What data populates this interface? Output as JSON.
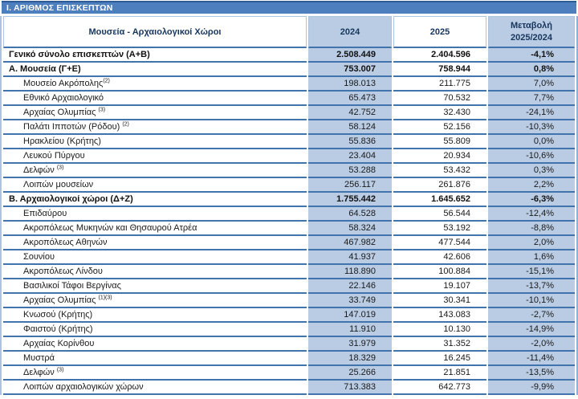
{
  "title": "Ι. ΑΡΙΘΜΟΣ ΕΠΙΣΚΕΠΤΩΝ",
  "colors": {
    "title_bar": "#4d7fbe",
    "title_bar_top_edge": "#2d5b96",
    "row_border": "#4173ad",
    "shaded_column_fill": "#b9cce4",
    "header_text": "#17365d"
  },
  "table": {
    "columns": [
      "Μουσεία - Αρχαιολογικοί Χώροι",
      "2024",
      "2025",
      "Μεταβολή 2025/2024"
    ],
    "rows": [
      {
        "label": "Γενικό σύνολο επισκεπτών (Α+Β)",
        "sup": "",
        "v2024": "2.508.449",
        "v2025": "2.404.596",
        "change": "-4,1%",
        "bold": true,
        "indent": 0
      },
      {
        "label": "Α. Μουσεία (Γ+Ε)",
        "sup": "",
        "v2024": "753.007",
        "v2025": "758.944",
        "change": "0,8%",
        "bold": true,
        "indent": 0
      },
      {
        "label": "Μουσείο Ακρόπολης",
        "sup": "(2)",
        "v2024": "198.013",
        "v2025": "211.775",
        "change": "7,0%",
        "bold": false,
        "indent": 1
      },
      {
        "label": "Εθνικό Αρχαιολογικό",
        "sup": "",
        "v2024": "65.473",
        "v2025": "70.532",
        "change": "7,7%",
        "bold": false,
        "indent": 1
      },
      {
        "label": "Αρχαίας Ολυμπίας ",
        "sup": "(3)",
        "v2024": "42.752",
        "v2025": "32.430",
        "change": "-24,1%",
        "bold": false,
        "indent": 1
      },
      {
        "label": "Παλάτι Ιπποτών (Ρόδου) ",
        "sup": "(2)",
        "v2024": "58.124",
        "v2025": "52.156",
        "change": "-10,3%",
        "bold": false,
        "indent": 1
      },
      {
        "label": "Ηρακλείου (Κρήτης)",
        "sup": "",
        "v2024": "55.836",
        "v2025": "55.809",
        "change": "0,0%",
        "bold": false,
        "indent": 1
      },
      {
        "label": "Λευκού Πύργου",
        "sup": "",
        "v2024": "23.404",
        "v2025": "20.934",
        "change": "-10,6%",
        "bold": false,
        "indent": 1
      },
      {
        "label": "Δελφών ",
        "sup": "(3)",
        "v2024": "53.288",
        "v2025": "53.432",
        "change": "0,3%",
        "bold": false,
        "indent": 1
      },
      {
        "label": "Λοιπών μουσείων",
        "sup": "",
        "v2024": "256.117",
        "v2025": "261.876",
        "change": "2,2%",
        "bold": false,
        "indent": 1
      },
      {
        "label": "Β. Αρχαιολογικοί χώροι (Δ+Ζ)",
        "sup": "",
        "v2024": "1.755.442",
        "v2025": "1.645.652",
        "change": "-6,3%",
        "bold": true,
        "indent": 0
      },
      {
        "label": "Επιδαύρου",
        "sup": "",
        "v2024": "64.528",
        "v2025": "56.544",
        "change": "-12,4%",
        "bold": false,
        "indent": 1
      },
      {
        "label": "Ακροπόλεως Μυκηνών και Θησαυρού Ατρέα",
        "sup": "",
        "v2024": "58.324",
        "v2025": "53.192",
        "change": "-8,8%",
        "bold": false,
        "indent": 1
      },
      {
        "label": "Ακροπόλεως Αθηνών",
        "sup": "",
        "v2024": "467.982",
        "v2025": "477.544",
        "change": "2,0%",
        "bold": false,
        "indent": 1
      },
      {
        "label": "Σουνίου",
        "sup": "",
        "v2024": "41.937",
        "v2025": "42.606",
        "change": "1,6%",
        "bold": false,
        "indent": 1
      },
      {
        "label": "Ακροπόλεως Λίνδου",
        "sup": "",
        "v2024": "118.890",
        "v2025": "100.884",
        "change": "-15,1%",
        "bold": false,
        "indent": 1
      },
      {
        "label": "Βασιλικοί Τάφοι Βεργίνας",
        "sup": "",
        "v2024": "22.146",
        "v2025": "19.107",
        "change": "-13,7%",
        "bold": false,
        "indent": 1
      },
      {
        "label": "Αρχαίας Ολυμπίας ",
        "sup": "(1)(3)",
        "v2024": "33.749",
        "v2025": "30.341",
        "change": "-10,1%",
        "bold": false,
        "indent": 1
      },
      {
        "label": "Κνωσού (Κρήτης)",
        "sup": "",
        "v2024": "147.019",
        "v2025": "143.083",
        "change": "-2,7%",
        "bold": false,
        "indent": 1
      },
      {
        "label": "Φαιστού (Κρήτης)",
        "sup": "",
        "v2024": "11.910",
        "v2025": "10.130",
        "change": "-14,9%",
        "bold": false,
        "indent": 1
      },
      {
        "label": "Αρχαίας Κορίνθου",
        "sup": "",
        "v2024": "31.979",
        "v2025": "31.352",
        "change": "-2,0%",
        "bold": false,
        "indent": 1
      },
      {
        "label": "Μυστρά",
        "sup": "",
        "v2024": "18.329",
        "v2025": "16.245",
        "change": "-11,4%",
        "bold": false,
        "indent": 1
      },
      {
        "label": "Δελφών ",
        "sup": "(3)",
        "v2024": "25.266",
        "v2025": "21.851",
        "change": "-13,5%",
        "bold": false,
        "indent": 1
      },
      {
        "label": "Λοιπών αρχαιολογικών χώρων",
        "sup": "",
        "v2024": "713.383",
        "v2025": "642.773",
        "change": "-9,9%",
        "bold": false,
        "indent": 1
      }
    ]
  }
}
